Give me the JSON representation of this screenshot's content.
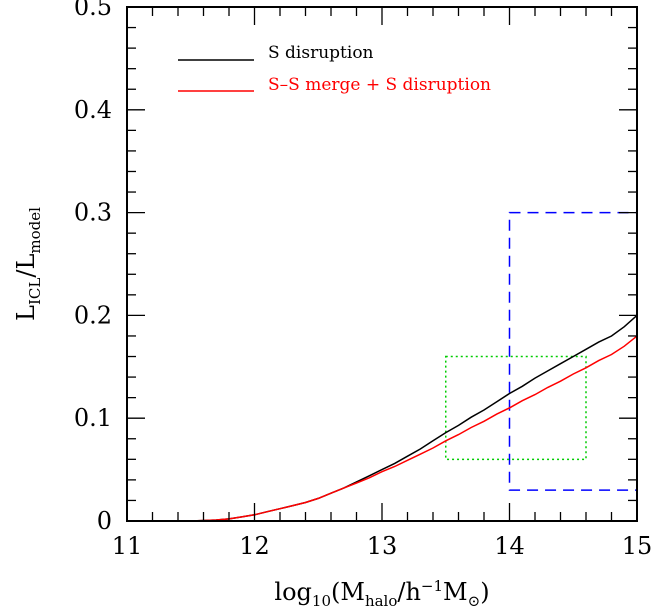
{
  "chart_data": {
    "type": "line",
    "title": "",
    "xlabel": {
      "main": "log",
      "main_sub": "10",
      "open": "(M",
      "halo_sub": "halo",
      "slash": "/h",
      "sup": "−1",
      "m": "M",
      "sun_sub": "⊙",
      "close": ")"
    },
    "ylabel": {
      "l1": "L",
      "l1_sub": "ICL",
      "slash": "/L",
      "l2_sub": "model"
    },
    "xlim": [
      11,
      15
    ],
    "ylim": [
      0,
      0.5
    ],
    "x_ticks": [
      {
        "value": 11,
        "label": "11"
      },
      {
        "value": 12,
        "label": "12"
      },
      {
        "value": 13,
        "label": "13"
      },
      {
        "value": 14,
        "label": "14"
      },
      {
        "value": 15,
        "label": "15"
      }
    ],
    "y_ticks": [
      {
        "value": 0,
        "label": "0"
      },
      {
        "value": 0.1,
        "label": "0.1"
      },
      {
        "value": 0.2,
        "label": "0.2"
      },
      {
        "value": 0.3,
        "label": "0.3"
      },
      {
        "value": 0.4,
        "label": "0.4"
      },
      {
        "value": 0.5,
        "label": "0.5"
      }
    ],
    "legend_position": "top-left",
    "series": [
      {
        "name": "S disruption",
        "color": "#000000",
        "x": [
          11.0,
          11.5,
          11.7,
          11.8,
          11.9,
          12.0,
          12.1,
          12.2,
          12.3,
          12.4,
          12.5,
          12.6,
          12.7,
          12.8,
          12.9,
          13.0,
          13.1,
          13.2,
          13.3,
          13.4,
          13.5,
          13.6,
          13.7,
          13.8,
          13.9,
          14.0,
          14.1,
          14.2,
          14.3,
          14.4,
          14.5,
          14.6,
          14.7,
          14.8,
          14.9,
          15.0
        ],
        "y": [
          0.0,
          0.0,
          0.001,
          0.002,
          0.004,
          0.006,
          0.009,
          0.012,
          0.015,
          0.018,
          0.022,
          0.027,
          0.032,
          0.038,
          0.044,
          0.05,
          0.056,
          0.063,
          0.07,
          0.078,
          0.086,
          0.093,
          0.101,
          0.108,
          0.116,
          0.124,
          0.131,
          0.139,
          0.146,
          0.153,
          0.16,
          0.167,
          0.174,
          0.18,
          0.189,
          0.2
        ]
      },
      {
        "name": "S–S merge + S disruption",
        "color": "#ff0000",
        "x": [
          11.0,
          11.5,
          11.7,
          11.8,
          11.9,
          12.0,
          12.1,
          12.2,
          12.3,
          12.4,
          12.5,
          12.6,
          12.7,
          12.8,
          12.9,
          13.0,
          13.1,
          13.2,
          13.3,
          13.4,
          13.5,
          13.6,
          13.7,
          13.8,
          13.9,
          14.0,
          14.1,
          14.2,
          14.3,
          14.4,
          14.5,
          14.6,
          14.7,
          14.8,
          14.9,
          15.0
        ],
        "y": [
          0.0,
          0.0,
          0.001,
          0.002,
          0.004,
          0.006,
          0.009,
          0.012,
          0.015,
          0.018,
          0.022,
          0.027,
          0.032,
          0.037,
          0.042,
          0.048,
          0.053,
          0.059,
          0.065,
          0.071,
          0.078,
          0.084,
          0.091,
          0.097,
          0.104,
          0.11,
          0.117,
          0.123,
          0.13,
          0.136,
          0.143,
          0.149,
          0.156,
          0.162,
          0.17,
          0.18
        ]
      }
    ],
    "boxes": [
      {
        "style": "dashed",
        "color": "#0000ff",
        "x": [
          14.0,
          15.0
        ],
        "y": [
          0.03,
          0.3
        ]
      },
      {
        "style": "dotted",
        "color": "#00cc00",
        "x": [
          13.5,
          14.6
        ],
        "y": [
          0.06,
          0.16
        ]
      }
    ]
  }
}
